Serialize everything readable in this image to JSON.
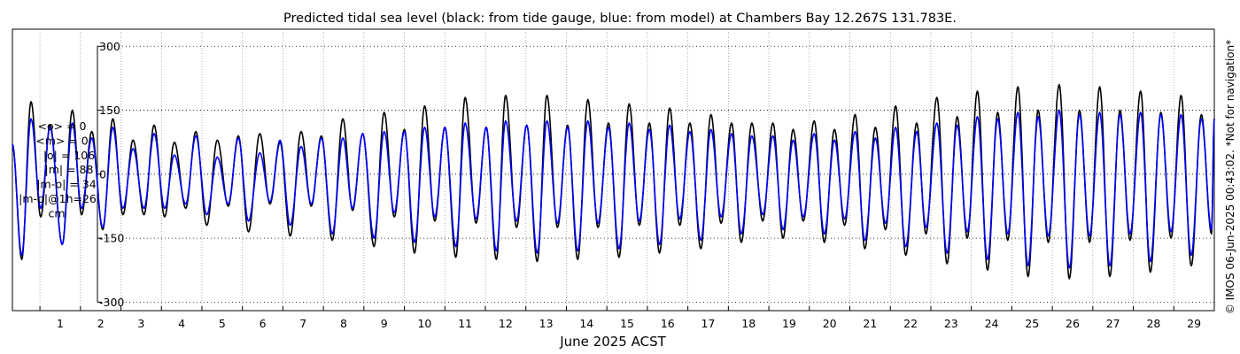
{
  "chart_data": {
    "type": "line",
    "title": "Predicted tidal sea level (black: from tide gauge, blue: from model) at Chambers Bay 12.267S 131.783E.",
    "xlabel": "June 2025 ACST",
    "ylabel": "",
    "x_unit": "day of June 2025",
    "xlim": [
      0.32,
      30.0
    ],
    "ylim": [
      -320,
      340
    ],
    "y_ticks": [
      300,
      150,
      0,
      -150,
      -300
    ],
    "y_tick_labels": [
      "300",
      "150",
      "0",
      "-150",
      "-300"
    ],
    "x_ticks": [
      1,
      2,
      3,
      4,
      5,
      6,
      7,
      8,
      9,
      10,
      11,
      12,
      13,
      14,
      15,
      16,
      17,
      18,
      19,
      20,
      21,
      22,
      23,
      24,
      25,
      26,
      27,
      28,
      29
    ],
    "x_tick_labels": [
      "1",
      "2",
      "3",
      "4",
      "5",
      "6",
      "7",
      "8",
      "9",
      "10",
      "11",
      "12",
      "13",
      "14",
      "15",
      "16",
      "17",
      "18",
      "19",
      "20",
      "21",
      "22",
      "23",
      "24",
      "25",
      "26",
      "27",
      "28",
      "29"
    ],
    "grid": true,
    "legend": "none",
    "series": [
      {
        "color": "#000000",
        "high_water": [
          {
            "x": 0.78,
            "y": 170
          },
          {
            "x": 1.25,
            "y": 115
          },
          {
            "x": 1.8,
            "y": 150
          },
          {
            "x": 2.28,
            "y": 100
          },
          {
            "x": 2.8,
            "y": 130
          },
          {
            "x": 3.3,
            "y": 80
          },
          {
            "x": 3.82,
            "y": 115
          },
          {
            "x": 4.32,
            "y": 75
          },
          {
            "x": 4.85,
            "y": 100
          },
          {
            "x": 5.38,
            "y": 80
          },
          {
            "x": 5.9,
            "y": 90
          },
          {
            "x": 6.43,
            "y": 95
          },
          {
            "x": 6.93,
            "y": 75
          },
          {
            "x": 7.45,
            "y": 100
          },
          {
            "x": 7.95,
            "y": 90
          },
          {
            "x": 8.48,
            "y": 130
          },
          {
            "x": 8.97,
            "y": 95
          },
          {
            "x": 9.5,
            "y": 145
          },
          {
            "x": 10.0,
            "y": 105
          },
          {
            "x": 10.5,
            "y": 160
          },
          {
            "x": 11.0,
            "y": 110
          },
          {
            "x": 11.5,
            "y": 180
          },
          {
            "x": 12.02,
            "y": 110
          },
          {
            "x": 12.5,
            "y": 185
          },
          {
            "x": 13.02,
            "y": 115
          },
          {
            "x": 13.52,
            "y": 185
          },
          {
            "x": 14.03,
            "y": 115
          },
          {
            "x": 14.53,
            "y": 175
          },
          {
            "x": 15.04,
            "y": 120
          },
          {
            "x": 15.55,
            "y": 165
          },
          {
            "x": 16.05,
            "y": 120
          },
          {
            "x": 16.55,
            "y": 155
          },
          {
            "x": 17.05,
            "y": 120
          },
          {
            "x": 17.57,
            "y": 140
          },
          {
            "x": 18.08,
            "y": 120
          },
          {
            "x": 18.58,
            "y": 120
          },
          {
            "x": 19.1,
            "y": 120
          },
          {
            "x": 19.6,
            "y": 105
          },
          {
            "x": 20.12,
            "y": 125
          },
          {
            "x": 20.62,
            "y": 105
          },
          {
            "x": 21.13,
            "y": 140
          },
          {
            "x": 21.63,
            "y": 110
          },
          {
            "x": 22.13,
            "y": 160
          },
          {
            "x": 22.65,
            "y": 120
          },
          {
            "x": 23.15,
            "y": 180
          },
          {
            "x": 23.65,
            "y": 135
          },
          {
            "x": 24.15,
            "y": 195
          },
          {
            "x": 24.65,
            "y": 145
          },
          {
            "x": 25.15,
            "y": 205
          },
          {
            "x": 25.65,
            "y": 150
          },
          {
            "x": 26.17,
            "y": 210
          },
          {
            "x": 26.67,
            "y": 150
          },
          {
            "x": 27.17,
            "y": 205
          },
          {
            "x": 27.67,
            "y": 150
          },
          {
            "x": 28.18,
            "y": 195
          },
          {
            "x": 28.68,
            "y": 145
          },
          {
            "x": 29.18,
            "y": 185
          },
          {
            "x": 29.68,
            "y": 140
          }
        ],
        "low_water": [
          {
            "x": 0.55,
            "y": -200
          },
          {
            "x": 1.02,
            "y": -100
          },
          {
            "x": 1.55,
            "y": -165
          },
          {
            "x": 2.03,
            "y": -95
          },
          {
            "x": 2.55,
            "y": -130
          },
          {
            "x": 3.05,
            "y": -95
          },
          {
            "x": 3.57,
            "y": -95
          },
          {
            "x": 4.08,
            "y": -100
          },
          {
            "x": 4.6,
            "y": -80
          },
          {
            "x": 5.12,
            "y": -120
          },
          {
            "x": 5.65,
            "y": -75
          },
          {
            "x": 6.15,
            "y": -135
          },
          {
            "x": 6.68,
            "y": -70
          },
          {
            "x": 7.18,
            "y": -145
          },
          {
            "x": 7.7,
            "y": -75
          },
          {
            "x": 8.22,
            "y": -155
          },
          {
            "x": 8.72,
            "y": -85
          },
          {
            "x": 9.25,
            "y": -170
          },
          {
            "x": 9.75,
            "y": -100
          },
          {
            "x": 10.25,
            "y": -185
          },
          {
            "x": 10.75,
            "y": -110
          },
          {
            "x": 11.27,
            "y": -195
          },
          {
            "x": 11.77,
            "y": -115
          },
          {
            "x": 12.27,
            "y": -200
          },
          {
            "x": 12.77,
            "y": -125
          },
          {
            "x": 13.28,
            "y": -205
          },
          {
            "x": 13.78,
            "y": -125
          },
          {
            "x": 14.28,
            "y": -200
          },
          {
            "x": 14.78,
            "y": -125
          },
          {
            "x": 15.3,
            "y": -195
          },
          {
            "x": 15.8,
            "y": -120
          },
          {
            "x": 16.3,
            "y": -185
          },
          {
            "x": 16.8,
            "y": -120
          },
          {
            "x": 17.32,
            "y": -175
          },
          {
            "x": 17.82,
            "y": -115
          },
          {
            "x": 18.32,
            "y": -160
          },
          {
            "x": 18.85,
            "y": -110
          },
          {
            "x": 19.35,
            "y": -150
          },
          {
            "x": 19.85,
            "y": -110
          },
          {
            "x": 20.37,
            "y": -160
          },
          {
            "x": 20.87,
            "y": -120
          },
          {
            "x": 21.37,
            "y": -175
          },
          {
            "x": 21.88,
            "y": -130
          },
          {
            "x": 22.38,
            "y": -190
          },
          {
            "x": 22.88,
            "y": -140
          },
          {
            "x": 23.4,
            "y": -210
          },
          {
            "x": 23.9,
            "y": -150
          },
          {
            "x": 24.4,
            "y": -225
          },
          {
            "x": 24.9,
            "y": -155
          },
          {
            "x": 25.4,
            "y": -240
          },
          {
            "x": 25.9,
            "y": -160
          },
          {
            "x": 26.42,
            "y": -245
          },
          {
            "x": 26.92,
            "y": -160
          },
          {
            "x": 27.42,
            "y": -240
          },
          {
            "x": 27.92,
            "y": -155
          },
          {
            "x": 28.42,
            "y": -230
          },
          {
            "x": 28.93,
            "y": -150
          },
          {
            "x": 29.43,
            "y": -215
          },
          {
            "x": 29.93,
            "y": -140
          }
        ]
      },
      {
        "color": "#0000ff",
        "high_water": [
          {
            "x": 0.78,
            "y": 130
          },
          {
            "x": 1.25,
            "y": 110
          },
          {
            "x": 1.8,
            "y": 120
          },
          {
            "x": 2.28,
            "y": 85
          },
          {
            "x": 2.8,
            "y": 110
          },
          {
            "x": 3.3,
            "y": 60
          },
          {
            "x": 3.82,
            "y": 95
          },
          {
            "x": 4.32,
            "y": 45
          },
          {
            "x": 4.85,
            "y": 90
          },
          {
            "x": 5.38,
            "y": 40
          },
          {
            "x": 5.9,
            "y": 85
          },
          {
            "x": 6.43,
            "y": 50
          },
          {
            "x": 6.93,
            "y": 80
          },
          {
            "x": 7.45,
            "y": 65
          },
          {
            "x": 7.95,
            "y": 85
          },
          {
            "x": 8.48,
            "y": 85
          },
          {
            "x": 8.97,
            "y": 95
          },
          {
            "x": 9.5,
            "y": 100
          },
          {
            "x": 10.0,
            "y": 100
          },
          {
            "x": 10.5,
            "y": 110
          },
          {
            "x": 11.0,
            "y": 110
          },
          {
            "x": 11.5,
            "y": 120
          },
          {
            "x": 12.02,
            "y": 110
          },
          {
            "x": 12.5,
            "y": 125
          },
          {
            "x": 13.02,
            "y": 115
          },
          {
            "x": 13.52,
            "y": 125
          },
          {
            "x": 14.03,
            "y": 110
          },
          {
            "x": 14.53,
            "y": 125
          },
          {
            "x": 15.04,
            "y": 110
          },
          {
            "x": 15.55,
            "y": 120
          },
          {
            "x": 16.05,
            "y": 105
          },
          {
            "x": 16.55,
            "y": 115
          },
          {
            "x": 17.05,
            "y": 100
          },
          {
            "x": 17.57,
            "y": 105
          },
          {
            "x": 18.08,
            "y": 95
          },
          {
            "x": 18.58,
            "y": 90
          },
          {
            "x": 19.1,
            "y": 90
          },
          {
            "x": 19.6,
            "y": 80
          },
          {
            "x": 20.12,
            "y": 95
          },
          {
            "x": 20.62,
            "y": 80
          },
          {
            "x": 21.13,
            "y": 100
          },
          {
            "x": 21.63,
            "y": 85
          },
          {
            "x": 22.13,
            "y": 110
          },
          {
            "x": 22.65,
            "y": 100
          },
          {
            "x": 23.15,
            "y": 120
          },
          {
            "x": 23.65,
            "y": 115
          },
          {
            "x": 24.15,
            "y": 135
          },
          {
            "x": 24.65,
            "y": 130
          },
          {
            "x": 25.15,
            "y": 145
          },
          {
            "x": 25.65,
            "y": 135
          },
          {
            "x": 26.17,
            "y": 150
          },
          {
            "x": 26.67,
            "y": 140
          },
          {
            "x": 27.17,
            "y": 145
          },
          {
            "x": 27.67,
            "y": 140
          },
          {
            "x": 28.18,
            "y": 145
          },
          {
            "x": 28.68,
            "y": 140
          },
          {
            "x": 29.18,
            "y": 140
          },
          {
            "x": 29.68,
            "y": 130
          }
        ],
        "low_water": [
          {
            "x": 0.55,
            "y": -190
          },
          {
            "x": 1.02,
            "y": -80
          },
          {
            "x": 1.55,
            "y": -165
          },
          {
            "x": 2.03,
            "y": -80
          },
          {
            "x": 2.55,
            "y": -125
          },
          {
            "x": 3.05,
            "y": -80
          },
          {
            "x": 3.57,
            "y": -80
          },
          {
            "x": 4.08,
            "y": -80
          },
          {
            "x": 4.6,
            "y": -70
          },
          {
            "x": 5.12,
            "y": -95
          },
          {
            "x": 5.65,
            "y": -70
          },
          {
            "x": 6.15,
            "y": -110
          },
          {
            "x": 6.68,
            "y": -65
          },
          {
            "x": 7.18,
            "y": -120
          },
          {
            "x": 7.7,
            "y": -70
          },
          {
            "x": 8.22,
            "y": -140
          },
          {
            "x": 8.72,
            "y": -80
          },
          {
            "x": 9.25,
            "y": -150
          },
          {
            "x": 9.75,
            "y": -90
          },
          {
            "x": 10.25,
            "y": -160
          },
          {
            "x": 10.75,
            "y": -100
          },
          {
            "x": 11.27,
            "y": -170
          },
          {
            "x": 11.77,
            "y": -105
          },
          {
            "x": 12.27,
            "y": -180
          },
          {
            "x": 12.77,
            "y": -110
          },
          {
            "x": 13.28,
            "y": -185
          },
          {
            "x": 13.78,
            "y": -115
          },
          {
            "x": 14.28,
            "y": -180
          },
          {
            "x": 14.78,
            "y": -115
          },
          {
            "x": 15.3,
            "y": -175
          },
          {
            "x": 15.8,
            "y": -110
          },
          {
            "x": 16.3,
            "y": -165
          },
          {
            "x": 16.8,
            "y": -105
          },
          {
            "x": 17.32,
            "y": -155
          },
          {
            "x": 17.82,
            "y": -100
          },
          {
            "x": 18.32,
            "y": -140
          },
          {
            "x": 18.85,
            "y": -95
          },
          {
            "x": 19.35,
            "y": -130
          },
          {
            "x": 19.85,
            "y": -100
          },
          {
            "x": 20.37,
            "y": -140
          },
          {
            "x": 20.87,
            "y": -105
          },
          {
            "x": 21.37,
            "y": -155
          },
          {
            "x": 21.88,
            "y": -115
          },
          {
            "x": 22.38,
            "y": -170
          },
          {
            "x": 22.88,
            "y": -125
          },
          {
            "x": 23.4,
            "y": -185
          },
          {
            "x": 23.9,
            "y": -135
          },
          {
            "x": 24.4,
            "y": -200
          },
          {
            "x": 24.9,
            "y": -140
          },
          {
            "x": 25.4,
            "y": -215
          },
          {
            "x": 25.9,
            "y": -145
          },
          {
            "x": 26.42,
            "y": -220
          },
          {
            "x": 26.92,
            "y": -145
          },
          {
            "x": 27.42,
            "y": -215
          },
          {
            "x": 27.92,
            "y": -140
          },
          {
            "x": 28.42,
            "y": -205
          },
          {
            "x": 28.93,
            "y": -135
          },
          {
            "x": 29.43,
            "y": -190
          },
          {
            "x": 29.93,
            "y": -130
          }
        ]
      }
    ]
  },
  "stats": [
    {
      "label": "<o> = 0"
    },
    {
      "label": "<m> = 0"
    },
    {
      "label": "|o| = 106"
    },
    {
      "label": "|m| = 88"
    },
    {
      "label": "|m-o| = 34"
    },
    {
      "label": "|m-o|@1h=26"
    },
    {
      "label": "cm"
    }
  ],
  "copyright": "© IMOS 06-Jun-2025 00:43:02. *Not for navigation*"
}
